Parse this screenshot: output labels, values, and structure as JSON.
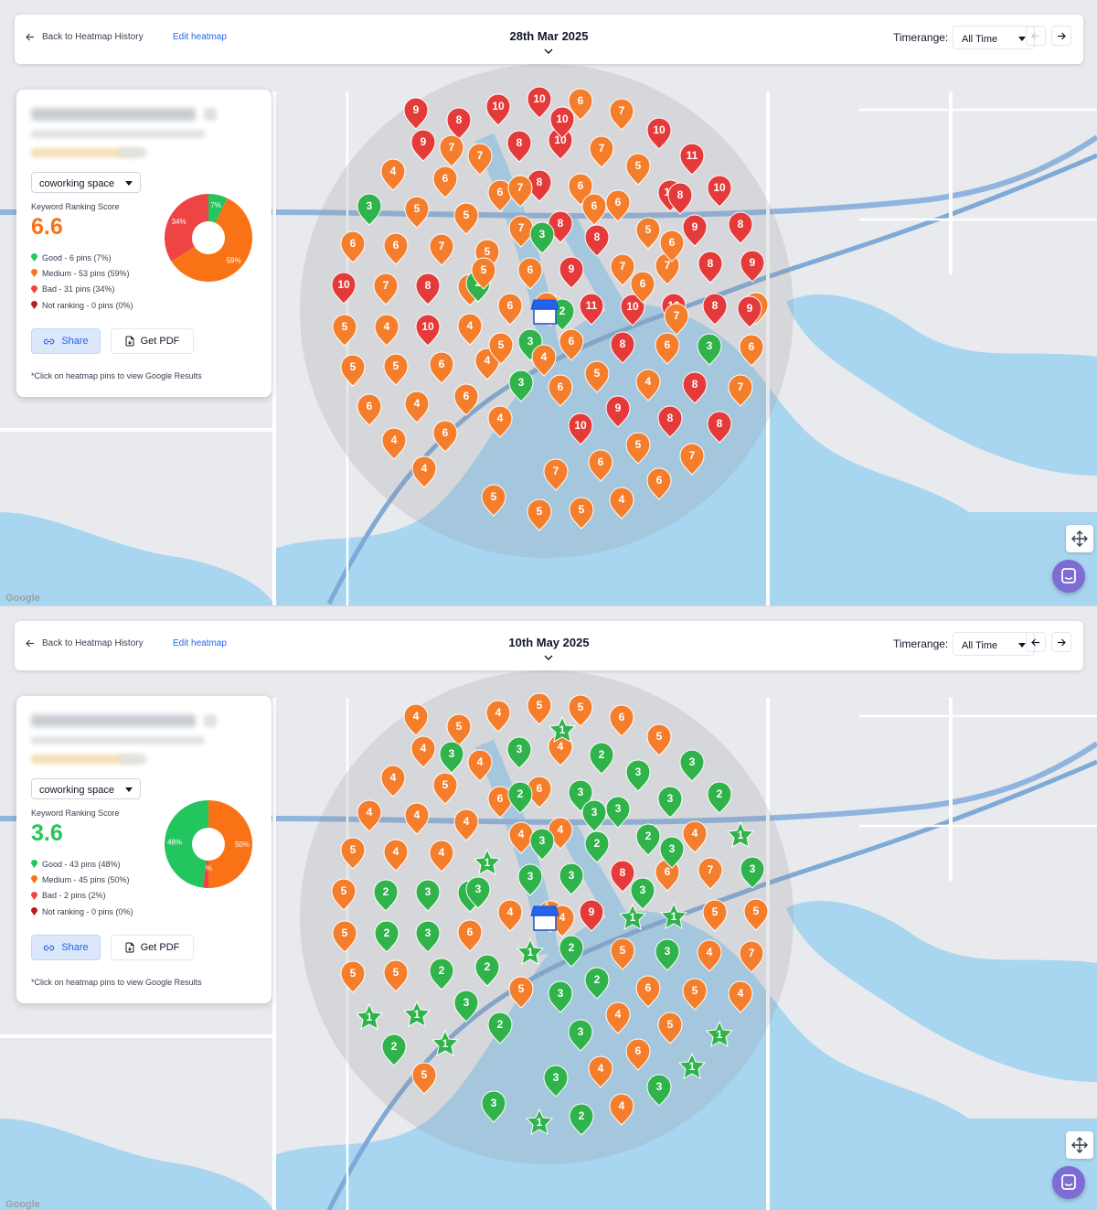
{
  "panels": [
    {
      "header": {
        "back_label": "Back to Heatmap History",
        "edit_label": "Edit heatmap",
        "date": "28th Mar 2025",
        "timerange_label": "Timerange:",
        "timerange_value": "All Time"
      },
      "card": {
        "keyword": "coworking space",
        "score_label": "Keyword Ranking Score",
        "score": "6.6",
        "score_color": "#f97316",
        "legend": [
          {
            "label": "Good - 6 pins (7%)",
            "color": "#22c55e"
          },
          {
            "label": "Medium - 53 pins (59%)",
            "color": "#f97316"
          },
          {
            "label": "Bad - 31 pins (34%)",
            "color": "#ef4444"
          },
          {
            "label": "Not ranking - 0 pins (0%)",
            "color": "#b91c1c"
          }
        ],
        "donut": [
          {
            "label": "7%",
            "value": 7,
            "color": "#22c55e"
          },
          {
            "label": "59%",
            "value": 59,
            "color": "#f97316"
          },
          {
            "label": "34%",
            "value": 34,
            "color": "#ef4444"
          }
        ],
        "share_label": "Share",
        "pdf_label": "Get PDF",
        "note": "*Click on heatmap pins to view Google Results"
      },
      "pins": "8,10,10,6,7,9,7,8,10,7,10,4,6,6,8,6,5,11,10,10,6,3,5,5,7,8,8,5,9,8,6,6,7,5,6,9,7,7,8,9,10,7,8,5,6,4,11,10,10,8,6,5,4,10,4,3,6,8,6,3,6,5,5,6,4,3,6,5,4,8,7,6,4,6,4,5,10,9,8,8,4,6,7,6,5,7,4,5,5,4,6,5,2,7,3,2,6,6,6,10,9,7,5,7,4,8,9,5"
    },
    {
      "header": {
        "back_label": "Back to Heatmap History",
        "edit_label": "Edit heatmap",
        "date": "10th May 2025",
        "timerange_label": "Timerange:",
        "timerange_value": "All Time"
      },
      "card": {
        "keyword": "coworking space",
        "score_label": "Keyword Ranking Score",
        "score": "3.6",
        "score_color": "#22c55e",
        "legend": [
          {
            "label": "Good - 43 pins (48%)",
            "color": "#22c55e"
          },
          {
            "label": "Medium - 45 pins (50%)",
            "color": "#f97316"
          },
          {
            "label": "Bad - 2 pins (2%)",
            "color": "#ef4444"
          },
          {
            "label": "Not ranking - 0 pins (0%)",
            "color": "#b91c1c"
          }
        ],
        "donut": [
          {
            "label": "50%",
            "value": 50,
            "color": "#f97316"
          },
          {
            "label": "2%",
            "value": 2,
            "color": "#ef4444"
          },
          {
            "label": "48%",
            "value": 48,
            "color": "#22c55e"
          }
        ],
        "share_label": "Share",
        "pdf_label": "Get PDF",
        "note": "*Click on heatmap pins to view Google Results"
      },
      "pins": "5,4,5,5,6,4,4,3,4,2,5,4,5,6,6,3,3,3,2,3,3,4,4,4,4,4,2,2,4,1,5,4,4,1,3,3,8,6,7,3,5,2,3,3,4,5,9,1,1,5,5,5,2,3,6,1,2,5,3,4,7,5,5,2,2,5,3,2,6,5,4,1,1,3,2,1,3,4,5,1,2,1,3,4,6,1,5,3,2,4,3,1,4,2,3,3,3,3,3,1,4,3"
    }
  ]
}
